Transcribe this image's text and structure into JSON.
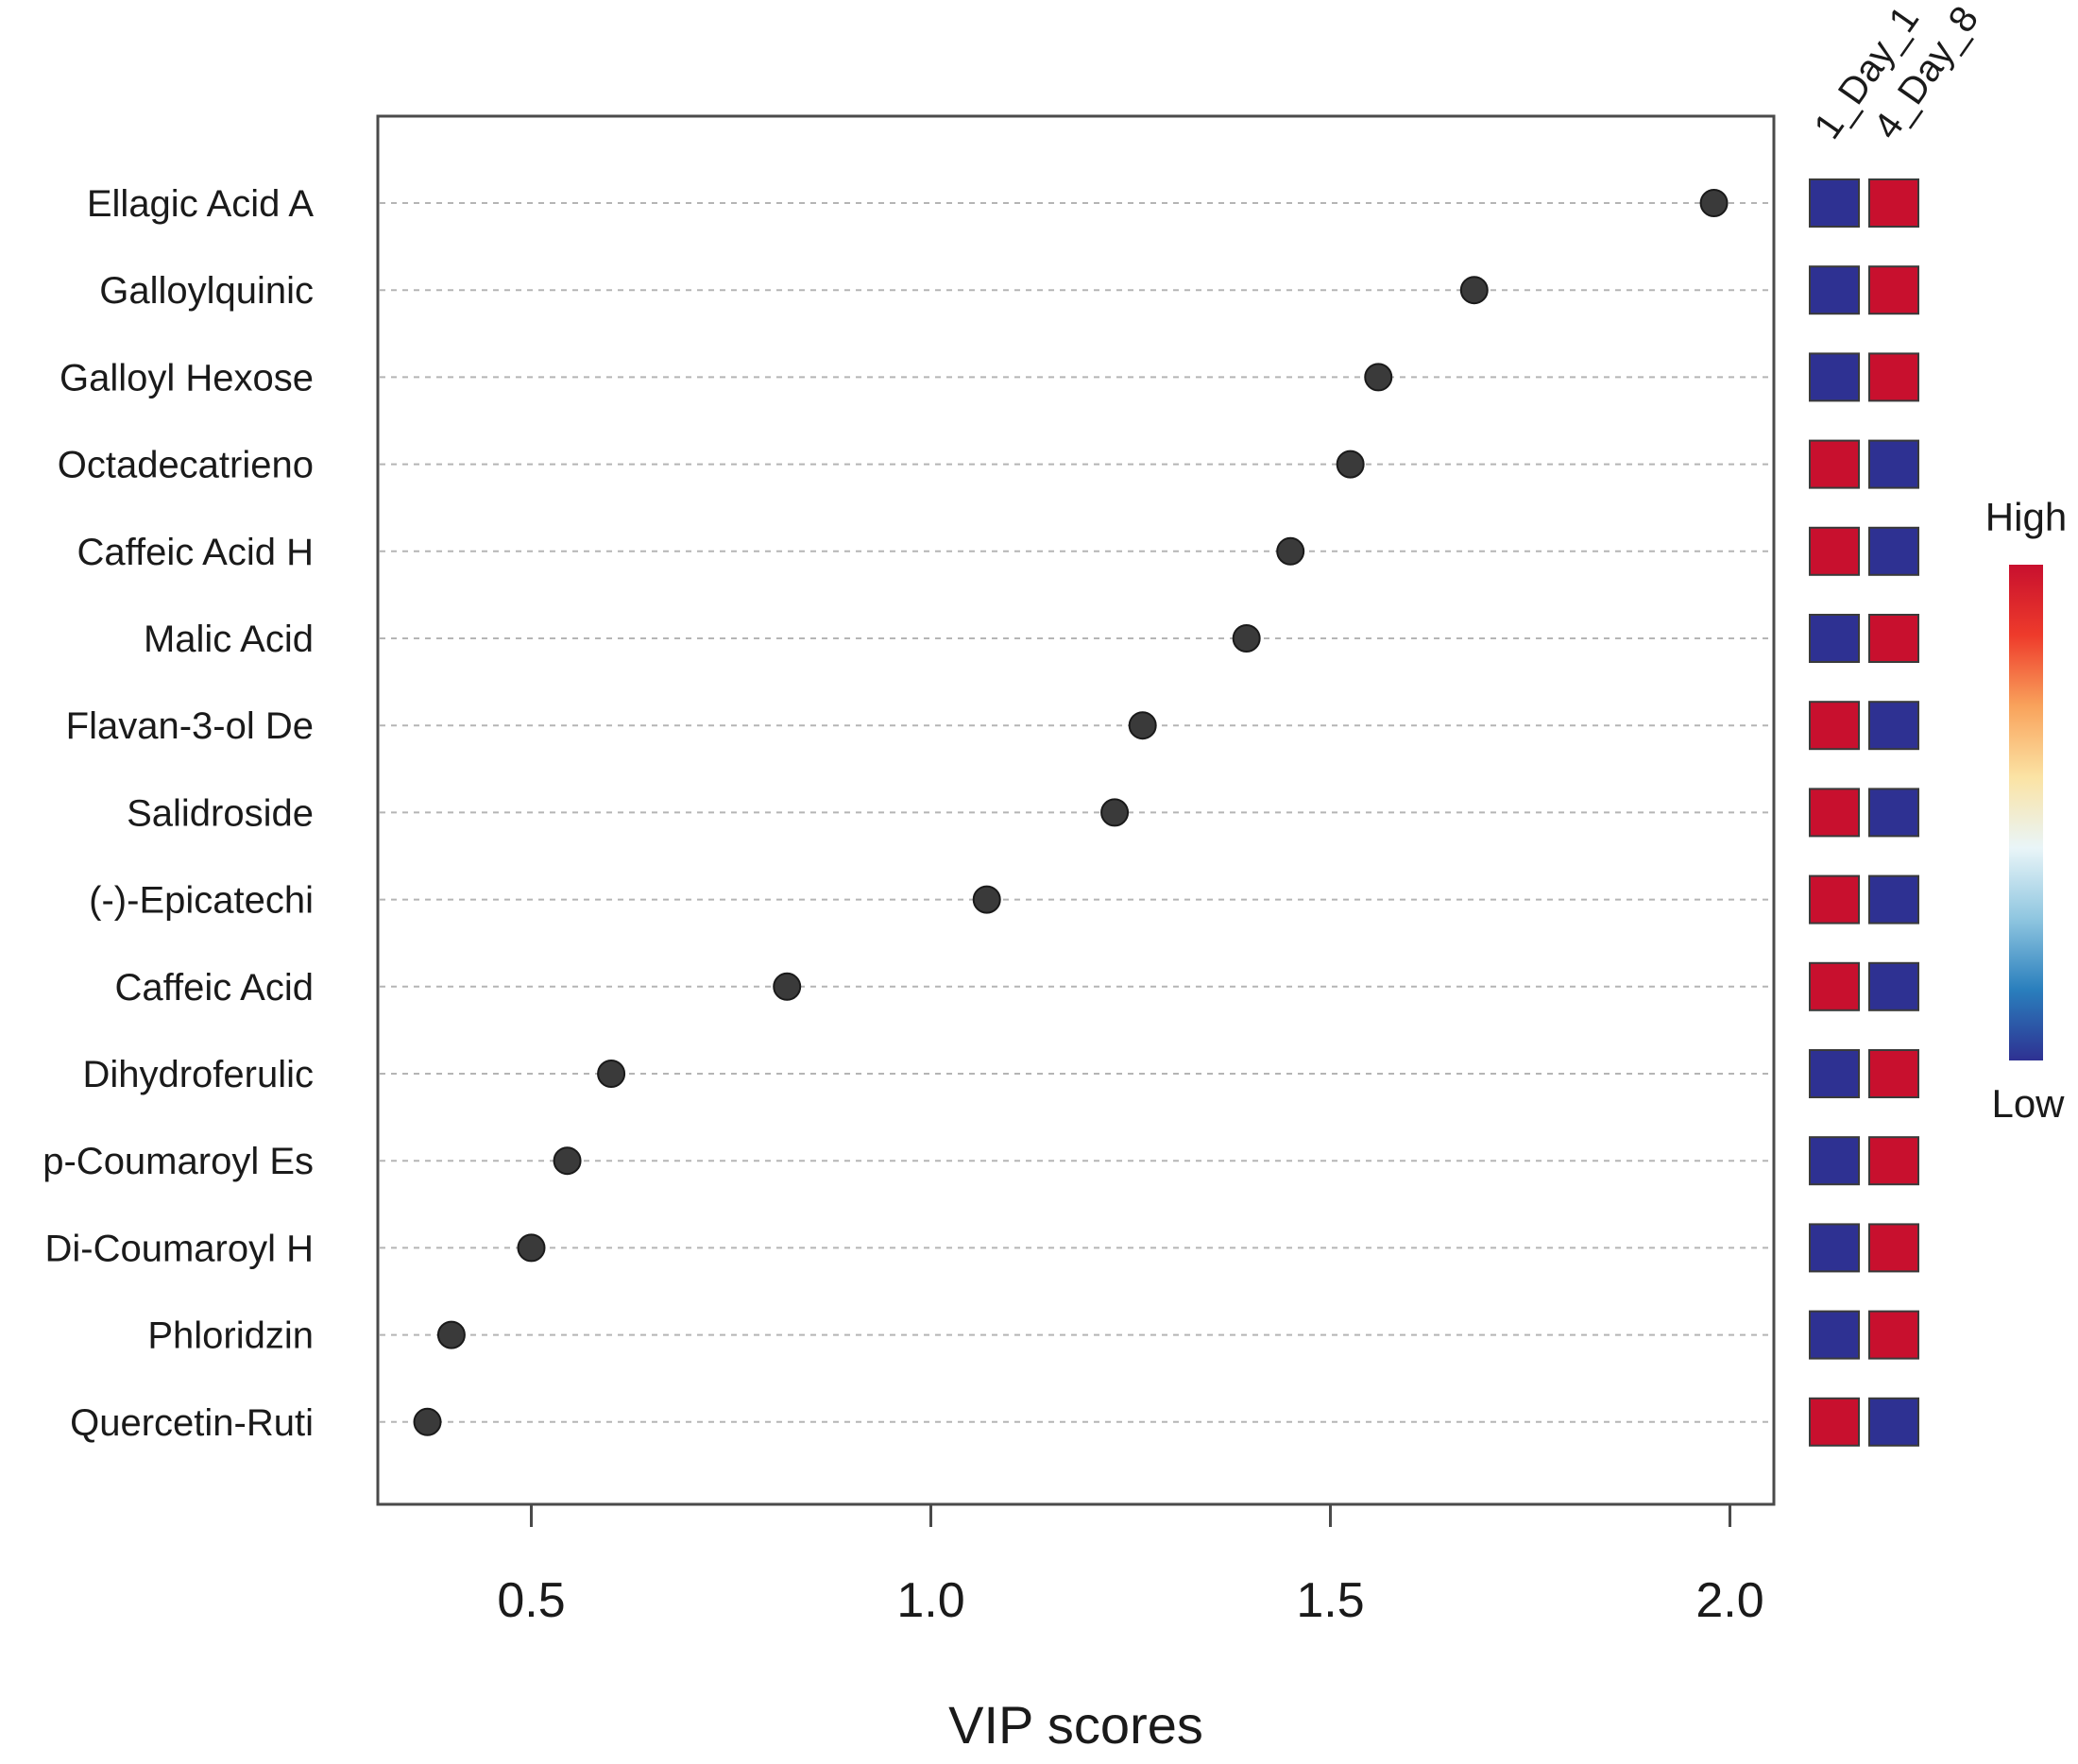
{
  "chart_data": {
    "type": "scatter",
    "title": "",
    "xlabel": "VIP scores",
    "ylabel": "",
    "xlim": [
      0.31,
      2.05
    ],
    "xticks": [
      0.5,
      1.0,
      1.5,
      2.0
    ],
    "xtick_labels": [
      "0.5",
      "1.0",
      "1.5",
      "2.0"
    ],
    "grid": "horizontal dashed",
    "categories": [
      "Ellagic Acid A",
      "Galloylquinic",
      "Galloyl Hexose",
      "Octadecatrieno",
      "Caffeic Acid H",
      "Malic Acid",
      "Flavan-3-ol De",
      "Salidroside",
      "(-)-Epicatechi",
      "Caffeic Acid",
      "Dihydroferulic",
      "p-Coumaroyl Es",
      "Di-Coumaroyl H",
      "Phloridzin",
      "Quercetin-Ruti"
    ],
    "values": [
      1.98,
      1.68,
      1.56,
      1.525,
      1.45,
      1.395,
      1.265,
      1.23,
      1.07,
      0.82,
      0.6,
      0.545,
      0.5,
      0.4,
      0.37
    ],
    "heatmap": {
      "groups": [
        "1_Day_1",
        "4_Day_8"
      ],
      "levels": [
        [
          "Low",
          "High"
        ],
        [
          "Low",
          "High"
        ],
        [
          "Low",
          "High"
        ],
        [
          "High",
          "Low"
        ],
        [
          "High",
          "Low"
        ],
        [
          "Low",
          "High"
        ],
        [
          "High",
          "Low"
        ],
        [
          "High",
          "Low"
        ],
        [
          "High",
          "Low"
        ],
        [
          "High",
          "Low"
        ],
        [
          "Low",
          "High"
        ],
        [
          "Low",
          "High"
        ],
        [
          "Low",
          "High"
        ],
        [
          "Low",
          "High"
        ],
        [
          "High",
          "Low"
        ]
      ],
      "colors": {
        "High": "#c8102e",
        "Low": "#2e3192"
      }
    },
    "legend": {
      "high_label": "High",
      "low_label": "Low",
      "position": "right",
      "gradient": [
        "#c8102e",
        "#ee3b2b",
        "#f9a35c",
        "#fbe3a4",
        "#e9f5f8",
        "#8fc6e0",
        "#2a7fbd",
        "#2e3192"
      ]
    },
    "point_color": "#3a3a3a"
  }
}
